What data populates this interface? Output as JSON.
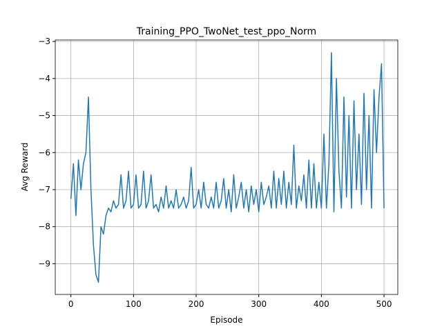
{
  "chart_data": {
    "type": "line",
    "title": "Training_PPO_TwoNet_test_ppo_Norm",
    "x_label": "Episode",
    "y_label": "Avg Reward",
    "x": [
      0,
      4,
      8,
      12,
      16,
      20,
      24,
      28,
      32,
      36,
      40,
      44,
      48,
      52,
      56,
      60,
      64,
      68,
      72,
      76,
      80,
      84,
      88,
      92,
      96,
      100,
      104,
      108,
      112,
      116,
      120,
      124,
      128,
      132,
      136,
      140,
      144,
      148,
      152,
      156,
      160,
      164,
      168,
      172,
      176,
      180,
      184,
      188,
      192,
      196,
      200,
      204,
      208,
      212,
      216,
      220,
      224,
      228,
      232,
      236,
      240,
      244,
      248,
      252,
      256,
      260,
      264,
      268,
      272,
      276,
      280,
      284,
      288,
      292,
      296,
      300,
      304,
      308,
      312,
      316,
      320,
      324,
      328,
      332,
      336,
      340,
      344,
      348,
      352,
      356,
      360,
      364,
      368,
      372,
      376,
      380,
      384,
      388,
      392,
      396,
      400,
      404,
      408,
      412,
      416,
      420,
      424,
      428,
      432,
      436,
      440,
      444,
      448,
      452,
      456,
      460,
      464,
      468,
      472,
      476,
      480,
      484,
      488,
      492,
      496,
      500
    ],
    "series": [
      {
        "name": "Avg Reward",
        "color": "#1f77b4",
        "values": [
          -7.25,
          -6.3,
          -7.7,
          -6.2,
          -7.0,
          -6.3,
          -6.0,
          -4.5,
          -7.0,
          -8.5,
          -9.3,
          -9.5,
          -8.0,
          -8.2,
          -7.7,
          -7.5,
          -7.6,
          -7.3,
          -7.5,
          -7.4,
          -6.6,
          -7.5,
          -7.3,
          -6.5,
          -7.5,
          -7.4,
          -6.6,
          -7.5,
          -7.4,
          -6.5,
          -7.5,
          -7.3,
          -6.6,
          -7.5,
          -7.4,
          -7.6,
          -7.2,
          -7.5,
          -6.9,
          -7.5,
          -7.3,
          -7.5,
          -7.0,
          -7.5,
          -7.4,
          -7.2,
          -7.5,
          -7.3,
          -6.4,
          -7.5,
          -7.4,
          -7.0,
          -7.5,
          -6.8,
          -7.4,
          -7.5,
          -7.2,
          -7.5,
          -6.8,
          -7.5,
          -7.3,
          -6.7,
          -7.5,
          -7.0,
          -7.6,
          -6.6,
          -7.5,
          -7.2,
          -6.8,
          -7.5,
          -7.0,
          -7.6,
          -6.9,
          -7.4,
          -7.0,
          -7.6,
          -6.8,
          -7.4,
          -7.2,
          -6.9,
          -7.5,
          -6.5,
          -7.5,
          -6.7,
          -7.4,
          -6.5,
          -7.5,
          -6.8,
          -7.4,
          -5.8,
          -7.5,
          -6.9,
          -7.3,
          -6.6,
          -7.5,
          -6.2,
          -7.5,
          -6.3,
          -7.5,
          -6.8,
          -7.5,
          -5.5,
          -7.5,
          -6.3,
          -3.3,
          -7.6,
          -4.0,
          -6.5,
          -7.5,
          -4.5,
          -7.2,
          -5.0,
          -7.5,
          -4.6,
          -7.0,
          -5.5,
          -7.4,
          -4.4,
          -7.0,
          -5.0,
          -7.5,
          -4.3,
          -6.0,
          -4.5,
          -3.6,
          -7.5
        ]
      }
    ],
    "xlim": [
      -25,
      522
    ],
    "ylim": [
      -9.83,
      -2.96
    ],
    "xticks": [
      0,
      100,
      200,
      300,
      400,
      500
    ],
    "yticks": [
      {
        "value": -9,
        "label": "−9"
      },
      {
        "value": -8,
        "label": "−8"
      },
      {
        "value": -7,
        "label": "−7"
      },
      {
        "value": -6,
        "label": "−6"
      },
      {
        "value": -5,
        "label": "−5"
      },
      {
        "value": -4,
        "label": "−4"
      },
      {
        "value": -3,
        "label": "−3"
      }
    ],
    "grid": true
  }
}
